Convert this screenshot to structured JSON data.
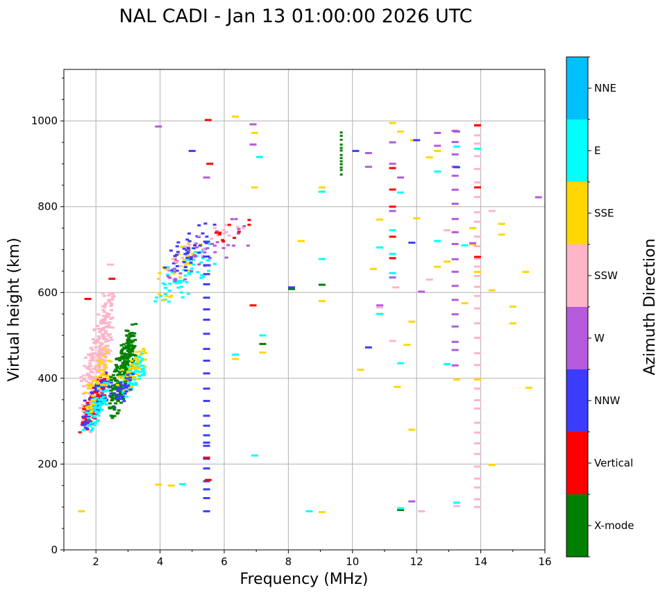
{
  "chart_data": {
    "type": "scatter",
    "title": "NAL CADI - Jan 13 01:00:00 2026 UTC",
    "xlabel": "Frequency (MHz)",
    "ylabel": "Virtual height (km)",
    "xlim": [
      1,
      16
    ],
    "ylim": [
      0,
      1120
    ],
    "xticks": [
      2,
      4,
      6,
      8,
      10,
      12,
      14,
      16
    ],
    "xtick_labels": [
      "2",
      "4",
      "6",
      "8",
      "10",
      "12",
      "14",
      "16"
    ],
    "yticks": [
      0,
      200,
      400,
      600,
      800,
      1000
    ],
    "ytick_labels": [
      "0",
      "200",
      "400",
      "600",
      "800",
      "1000"
    ],
    "grid": true,
    "colorbar": {
      "label": "Azimuth Direction",
      "categories": [
        "X-mode",
        "Vertical",
        "NNW",
        "W",
        "SSW",
        "SSE",
        "E",
        "NNE"
      ],
      "colors": [
        "#008000",
        "#ff0000",
        "#3c3cff",
        "#b45adc",
        "#ffb4c8",
        "#ffd700",
        "#00ffff",
        "#00bfff"
      ]
    },
    "clusters": [
      {
        "name": "F-region trace low",
        "cat": "SSW",
        "x": [
          1.5,
          2.6
        ],
        "y": [
          260,
          620
        ],
        "n": 260
      },
      {
        "name": "F-region trace low mixed",
        "cat": "Vertical",
        "x": [
          1.5,
          2.4
        ],
        "y": [
          270,
          420
        ],
        "n": 90
      },
      {
        "name": "F-region trace low mixed",
        "cat": "NNW",
        "x": [
          1.5,
          2.6
        ],
        "y": [
          280,
          420
        ],
        "n": 80
      },
      {
        "name": "F-region trace low mixed",
        "cat": "E",
        "x": [
          1.6,
          2.5
        ],
        "y": [
          270,
          400
        ],
        "n": 70
      },
      {
        "name": "F-region trace low mixed",
        "cat": "SSE",
        "x": [
          1.6,
          2.5
        ],
        "y": [
          300,
          480
        ],
        "n": 50
      },
      {
        "name": "X-mode trace",
        "cat": "X-mode",
        "x": [
          2.4,
          3.3
        ],
        "y": [
          300,
          540
        ],
        "n": 240
      },
      {
        "name": "X-mode mixed",
        "cat": "E",
        "x": [
          2.6,
          3.6
        ],
        "y": [
          340,
          460
        ],
        "n": 70
      },
      {
        "name": "X-mode mixed",
        "cat": "SSE",
        "x": [
          2.6,
          3.6
        ],
        "y": [
          350,
          480
        ],
        "n": 50
      },
      {
        "name": "X-mode mixed",
        "cat": "NNW",
        "x": [
          2.4,
          3.2
        ],
        "y": [
          320,
          420
        ],
        "n": 30
      },
      {
        "name": "Spread F upper",
        "cat": "E",
        "x": [
          3.5,
          6.0
        ],
        "y": [
          560,
          720
        ],
        "n": 60
      },
      {
        "name": "Spread F upper",
        "cat": "SSE",
        "x": [
          3.8,
          5.4
        ],
        "y": [
          580,
          740
        ],
        "n": 30
      },
      {
        "name": "Spread F upper",
        "cat": "NNW",
        "x": [
          4.0,
          6.0
        ],
        "y": [
          620,
          780
        ],
        "n": 45
      },
      {
        "name": "Spread F upper",
        "cat": "W",
        "x": [
          3.8,
          7.0
        ],
        "y": [
          600,
          780
        ],
        "n": 40
      },
      {
        "name": "Spread F upper",
        "cat": "SSW",
        "x": [
          4.0,
          7.0
        ],
        "y": [
          640,
          780
        ],
        "n": 20
      },
      {
        "name": "Spread F upper",
        "cat": "Vertical",
        "x": [
          5.4,
          7.0
        ],
        "y": [
          690,
          790
        ],
        "n": 10
      }
    ],
    "streaks": [
      {
        "cat": "X-mode",
        "x": 9.65,
        "y": [
          875,
          980
        ]
      },
      {
        "cat": "W",
        "x": 13.2,
        "y": [
          430,
          980
        ]
      },
      {
        "cat": "SSW",
        "x": 13.9,
        "y": [
          100,
          990
        ]
      },
      {
        "cat": "NNW",
        "x": 5.45,
        "y": [
          90,
          740
        ]
      }
    ],
    "points": [
      {
        "cat": "SSE",
        "x": 1.55,
        "y": 90
      },
      {
        "cat": "SSE",
        "x": 3.95,
        "y": 152
      },
      {
        "cat": "SSE",
        "x": 4.35,
        "y": 150
      },
      {
        "cat": "E",
        "x": 4.7,
        "y": 153
      },
      {
        "cat": "Vertical",
        "x": 5.5,
        "y": 1002
      },
      {
        "cat": "Vertical",
        "x": 5.55,
        "y": 900
      },
      {
        "cat": "W",
        "x": 5.45,
        "y": 868
      },
      {
        "cat": "NNW",
        "x": 5.0,
        "y": 930
      },
      {
        "cat": "W",
        "x": 3.95,
        "y": 987
      },
      {
        "cat": "SSE",
        "x": 6.35,
        "y": 1010
      },
      {
        "cat": "W",
        "x": 6.9,
        "y": 992
      },
      {
        "cat": "SSE",
        "x": 6.95,
        "y": 972
      },
      {
        "cat": "E",
        "x": 7.1,
        "y": 916
      },
      {
        "cat": "SSE",
        "x": 6.95,
        "y": 845
      },
      {
        "cat": "W",
        "x": 6.9,
        "y": 945
      },
      {
        "cat": "Vertical",
        "x": 5.5,
        "y": 163
      },
      {
        "cat": "Vertical",
        "x": 5.45,
        "y": 215
      },
      {
        "cat": "NNW",
        "x": 5.45,
        "y": 250
      },
      {
        "cat": "E",
        "x": 6.95,
        "y": 220
      },
      {
        "cat": "E",
        "x": 6.35,
        "y": 455
      },
      {
        "cat": "SSE",
        "x": 6.35,
        "y": 445
      },
      {
        "cat": "Vertical",
        "x": 6.9,
        "y": 570
      },
      {
        "cat": "X-mode",
        "x": 7.2,
        "y": 480
      },
      {
        "cat": "SSE",
        "x": 7.2,
        "y": 460
      },
      {
        "cat": "E",
        "x": 7.2,
        "y": 500
      },
      {
        "cat": "SSE",
        "x": 8.4,
        "y": 720
      },
      {
        "cat": "X-mode",
        "x": 8.1,
        "y": 608
      },
      {
        "cat": "NNW",
        "x": 8.1,
        "y": 612
      },
      {
        "cat": "E",
        "x": 8.65,
        "y": 90
      },
      {
        "cat": "SSE",
        "x": 9.05,
        "y": 88
      },
      {
        "cat": "X-mode",
        "x": 9.05,
        "y": 618
      },
      {
        "cat": "SSE",
        "x": 9.05,
        "y": 580
      },
      {
        "cat": "E",
        "x": 9.05,
        "y": 678
      },
      {
        "cat": "SSE",
        "x": 9.05,
        "y": 845
      },
      {
        "cat": "E",
        "x": 9.05,
        "y": 835
      },
      {
        "cat": "NNW",
        "x": 10.1,
        "y": 930
      },
      {
        "cat": "W",
        "x": 10.5,
        "y": 925
      },
      {
        "cat": "W",
        "x": 10.5,
        "y": 893
      },
      {
        "cat": "SSE",
        "x": 10.25,
        "y": 420
      },
      {
        "cat": "NNW",
        "x": 10.5,
        "y": 472
      },
      {
        "cat": "SSE",
        "x": 10.65,
        "y": 655
      },
      {
        "cat": "E",
        "x": 10.85,
        "y": 705
      },
      {
        "cat": "SSE",
        "x": 10.85,
        "y": 770
      },
      {
        "cat": "W",
        "x": 10.85,
        "y": 570
      },
      {
        "cat": "E",
        "x": 10.85,
        "y": 550
      },
      {
        "cat": "SSW",
        "x": 10.85,
        "y": 565
      },
      {
        "cat": "SSE",
        "x": 11.25,
        "y": 995
      },
      {
        "cat": "SSE",
        "x": 11.5,
        "y": 975
      },
      {
        "cat": "W",
        "x": 11.25,
        "y": 950
      },
      {
        "cat": "Vertical",
        "x": 11.25,
        "y": 890
      },
      {
        "cat": "W",
        "x": 11.25,
        "y": 900
      },
      {
        "cat": "W",
        "x": 11.5,
        "y": 868
      },
      {
        "cat": "Vertical",
        "x": 11.25,
        "y": 840
      },
      {
        "cat": "E",
        "x": 11.5,
        "y": 833
      },
      {
        "cat": "SSE",
        "x": 11.9,
        "y": 955
      },
      {
        "cat": "NNW",
        "x": 12.0,
        "y": 955
      },
      {
        "cat": "Vertical",
        "x": 11.25,
        "y": 800
      },
      {
        "cat": "W",
        "x": 11.25,
        "y": 790
      },
      {
        "cat": "E",
        "x": 11.25,
        "y": 745
      },
      {
        "cat": "Vertical",
        "x": 11.25,
        "y": 730
      },
      {
        "cat": "E",
        "x": 11.25,
        "y": 690
      },
      {
        "cat": "Vertical",
        "x": 11.25,
        "y": 680
      },
      {
        "cat": "E",
        "x": 11.25,
        "y": 645
      },
      {
        "cat": "W",
        "x": 11.25,
        "y": 635
      },
      {
        "cat": "SSW",
        "x": 11.35,
        "y": 612
      },
      {
        "cat": "SSW",
        "x": 11.25,
        "y": 487
      },
      {
        "cat": "SSE",
        "x": 11.4,
        "y": 380
      },
      {
        "cat": "E",
        "x": 11.5,
        "y": 435
      },
      {
        "cat": "SSE",
        "x": 11.7,
        "y": 478
      },
      {
        "cat": "SSE",
        "x": 11.85,
        "y": 532
      },
      {
        "cat": "SSE",
        "x": 11.85,
        "y": 280
      },
      {
        "cat": "X-mode",
        "x": 11.5,
        "y": 93
      },
      {
        "cat": "E",
        "x": 11.5,
        "y": 97
      },
      {
        "cat": "W",
        "x": 11.85,
        "y": 113
      },
      {
        "cat": "SSW",
        "x": 12.15,
        "y": 90
      },
      {
        "cat": "NNW",
        "x": 11.85,
        "y": 716
      },
      {
        "cat": "SSE",
        "x": 12.0,
        "y": 773
      },
      {
        "cat": "W",
        "x": 12.15,
        "y": 602
      },
      {
        "cat": "SSE",
        "x": 12.4,
        "y": 915
      },
      {
        "cat": "SSW",
        "x": 12.4,
        "y": 630
      },
      {
        "cat": "W",
        "x": 12.65,
        "y": 972
      },
      {
        "cat": "W",
        "x": 12.65,
        "y": 942
      },
      {
        "cat": "SSE",
        "x": 12.65,
        "y": 930
      },
      {
        "cat": "E",
        "x": 12.65,
        "y": 882
      },
      {
        "cat": "E",
        "x": 12.65,
        "y": 720
      },
      {
        "cat": "SSE",
        "x": 12.65,
        "y": 660
      },
      {
        "cat": "SSE",
        "x": 12.95,
        "y": 672
      },
      {
        "cat": "SSW",
        "x": 12.95,
        "y": 745
      },
      {
        "cat": "E",
        "x": 12.95,
        "y": 433
      },
      {
        "cat": "W",
        "x": 13.25,
        "y": 975
      },
      {
        "cat": "E",
        "x": 13.25,
        "y": 940
      },
      {
        "cat": "NNW",
        "x": 13.25,
        "y": 892
      },
      {
        "cat": "E",
        "x": 13.25,
        "y": 110
      },
      {
        "cat": "SSW",
        "x": 13.25,
        "y": 102
      },
      {
        "cat": "SSE",
        "x": 13.25,
        "y": 397
      },
      {
        "cat": "SSE",
        "x": 13.5,
        "y": 575
      },
      {
        "cat": "E",
        "x": 13.5,
        "y": 710
      },
      {
        "cat": "SSE",
        "x": 13.75,
        "y": 712
      },
      {
        "cat": "W",
        "x": 13.75,
        "y": 715
      },
      {
        "cat": "SSE",
        "x": 13.75,
        "y": 750
      },
      {
        "cat": "Vertical",
        "x": 13.9,
        "y": 990
      },
      {
        "cat": "E",
        "x": 13.9,
        "y": 935
      },
      {
        "cat": "Vertical",
        "x": 13.9,
        "y": 845
      },
      {
        "cat": "Vertical",
        "x": 13.9,
        "y": 683
      },
      {
        "cat": "SSE",
        "x": 13.9,
        "y": 648
      },
      {
        "cat": "SSE",
        "x": 13.9,
        "y": 397
      },
      {
        "cat": "SSE",
        "x": 14.35,
        "y": 198
      },
      {
        "cat": "SSE",
        "x": 14.35,
        "y": 605
      },
      {
        "cat": "SSW",
        "x": 14.35,
        "y": 790
      },
      {
        "cat": "SSE",
        "x": 14.65,
        "y": 760
      },
      {
        "cat": "SSE",
        "x": 14.65,
        "y": 735
      },
      {
        "cat": "SSE",
        "x": 15.0,
        "y": 567
      },
      {
        "cat": "SSE",
        "x": 15.0,
        "y": 528
      },
      {
        "cat": "SSE",
        "x": 15.4,
        "y": 648
      },
      {
        "cat": "SSE",
        "x": 15.5,
        "y": 378
      },
      {
        "cat": "W",
        "x": 15.8,
        "y": 822
      },
      {
        "cat": "Vertical",
        "x": 1.75,
        "y": 585
      },
      {
        "cat": "Vertical",
        "x": 2.5,
        "y": 632
      },
      {
        "cat": "SSW",
        "x": 2.45,
        "y": 665
      }
    ]
  }
}
